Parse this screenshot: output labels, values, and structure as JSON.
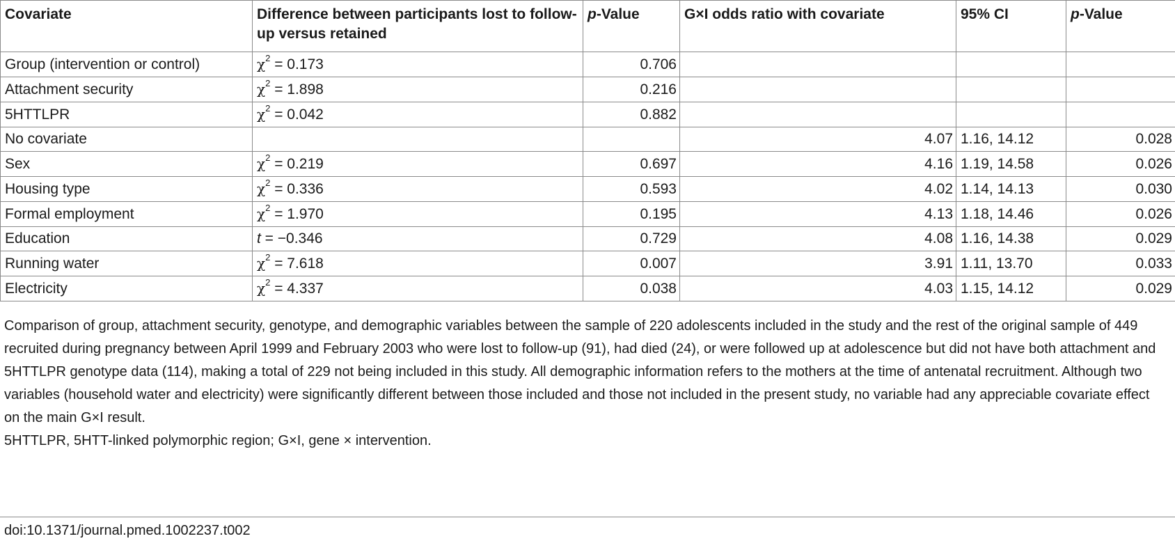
{
  "table": {
    "headers": {
      "covariate": "Covariate",
      "difference": "Difference between participants lost to follow-up versus retained",
      "p_value_1_italic": "p",
      "p_value_1_rest": "-Value",
      "gxi_or": "G×I odds ratio with covariate",
      "ci": "95% CI",
      "p_value_2_italic": "p",
      "p_value_2_rest": "-Value"
    },
    "rows": [
      {
        "covariate": "Group (intervention or control)",
        "stat_symbol": "χ",
        "stat_sup": "2",
        "stat_value": " = 0.173",
        "p1": "0.706",
        "or": "",
        "ci": "",
        "p2": ""
      },
      {
        "covariate": "Attachment security",
        "stat_symbol": "χ",
        "stat_sup": "2",
        "stat_value": " = 1.898",
        "p1": "0.216",
        "or": "",
        "ci": "",
        "p2": ""
      },
      {
        "covariate": "5HTTLPR",
        "stat_symbol": "χ",
        "stat_sup": "2",
        "stat_value": " = 0.042",
        "p1": "0.882",
        "or": "",
        "ci": "",
        "p2": ""
      },
      {
        "covariate": "No covariate",
        "stat_symbol": "",
        "stat_sup": "",
        "stat_value": "",
        "p1": "",
        "or": "4.07",
        "ci": "1.16, 14.12",
        "p2": "0.028"
      },
      {
        "covariate": "Sex",
        "stat_symbol": "χ",
        "stat_sup": "2",
        "stat_value": " = 0.219",
        "p1": "0.697",
        "or": "4.16",
        "ci": "1.19, 14.58",
        "p2": "0.026"
      },
      {
        "covariate": "Housing type",
        "stat_symbol": "χ",
        "stat_sup": "2",
        "stat_value": " = 0.336",
        "p1": "0.593",
        "or": "4.02",
        "ci": "1.14, 14.13",
        "p2": "0.030"
      },
      {
        "covariate": "Formal employment",
        "stat_symbol": "χ",
        "stat_sup": "2",
        "stat_value": " = 1.970",
        "p1": "0.195",
        "or": "4.13",
        "ci": "1.18, 14.46",
        "p2": "0.026"
      },
      {
        "covariate": "Education",
        "stat_symbol": "t",
        "stat_sup": "",
        "stat_value": " = −0.346",
        "p1": "0.729",
        "or": "4.08",
        "ci": "1.16, 14.38",
        "p2": "0.029"
      },
      {
        "covariate": "Running water",
        "stat_symbol": "χ",
        "stat_sup": "2",
        "stat_value": " = 7.618",
        "p1": "0.007",
        "or": "3.91",
        "ci": "1.11, 13.70",
        "p2": "0.033"
      },
      {
        "covariate": "Electricity",
        "stat_symbol": "χ",
        "stat_sup": "2",
        "stat_value": " = 4.337",
        "p1": "0.038",
        "or": "4.03",
        "ci": "1.15, 14.12",
        "p2": "0.029"
      }
    ]
  },
  "footnotes": {
    "description": "Comparison of group, attachment security, genotype, and demographic variables between the sample of 220 adolescents included in the study and the rest of the original sample of 449 recruited during pregnancy between April 1999 and February 2003 who were lost to follow-up (91), had died (24), or were followed up at adolescence but did not have both attachment and 5HTTLPR genotype data (114), making a total of 229 not being included in this study. All demographic information refers to the mothers at the time of antenatal recruitment. Although two variables (household water and electricity) were significantly different between those included and those not included in the present study, no variable had any appreciable covariate effect on the main G×I result.",
    "abbrev_start": "5HTTLPR, ",
    "abbrev_italic": "5HTT",
    "abbrev_rest": "-linked polymorphic region; G×I, gene × intervention."
  },
  "doi": "doi:10.1371/journal.pmed.1002237.t002"
}
